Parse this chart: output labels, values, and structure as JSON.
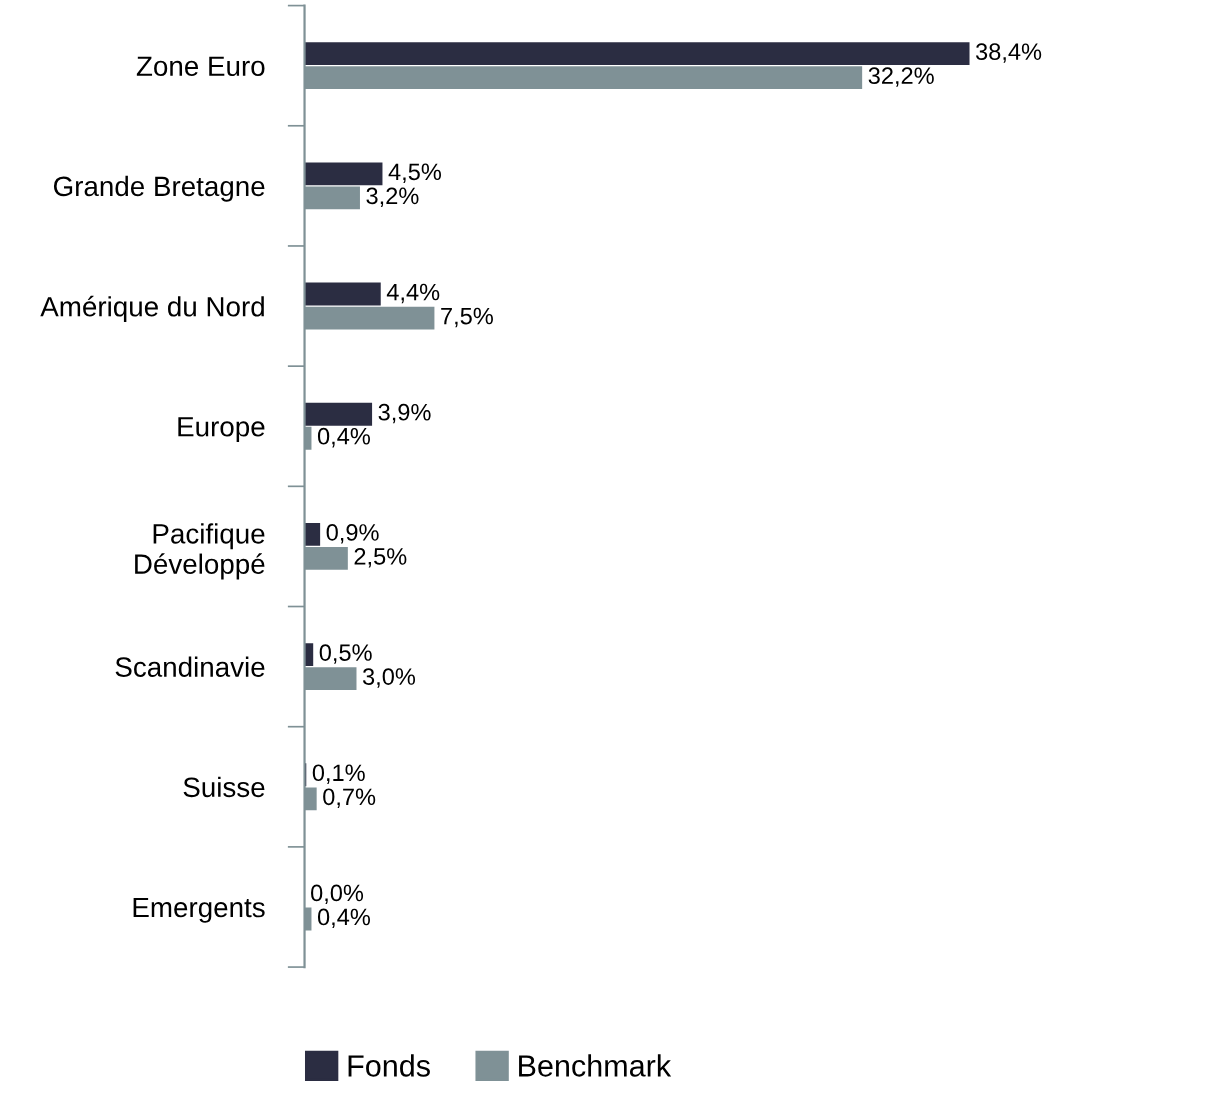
{
  "chart_data": {
    "type": "bar",
    "orientation": "horizontal",
    "categories": [
      "Zone Euro",
      "Grande Bretagne",
      "Amérique du Nord",
      "Europe",
      "Pacifique\nDéveloppé",
      "Scandinavie",
      "Suisse",
      "Emergents"
    ],
    "series": [
      {
        "name": "Fonds",
        "color": "#2b2d42",
        "values": [
          38.4,
          4.5,
          4.4,
          3.9,
          0.9,
          0.5,
          0.1,
          0.0
        ],
        "value_labels": [
          "38,4%",
          "4,5%",
          "4,4%",
          "3,9%",
          "0,9%",
          "0,5%",
          "0,1%",
          "0,0%"
        ]
      },
      {
        "name": "Benchmark",
        "color": "#7f9196",
        "values": [
          32.2,
          3.2,
          7.5,
          0.4,
          2.5,
          3.0,
          0.7,
          0.4
        ],
        "value_labels": [
          "32,2%",
          "3,2%",
          "7,5%",
          "0,4%",
          "2,5%",
          "3,0%",
          "0,7%",
          "0,4%"
        ]
      }
    ],
    "grid": false,
    "legend": "bottom"
  }
}
